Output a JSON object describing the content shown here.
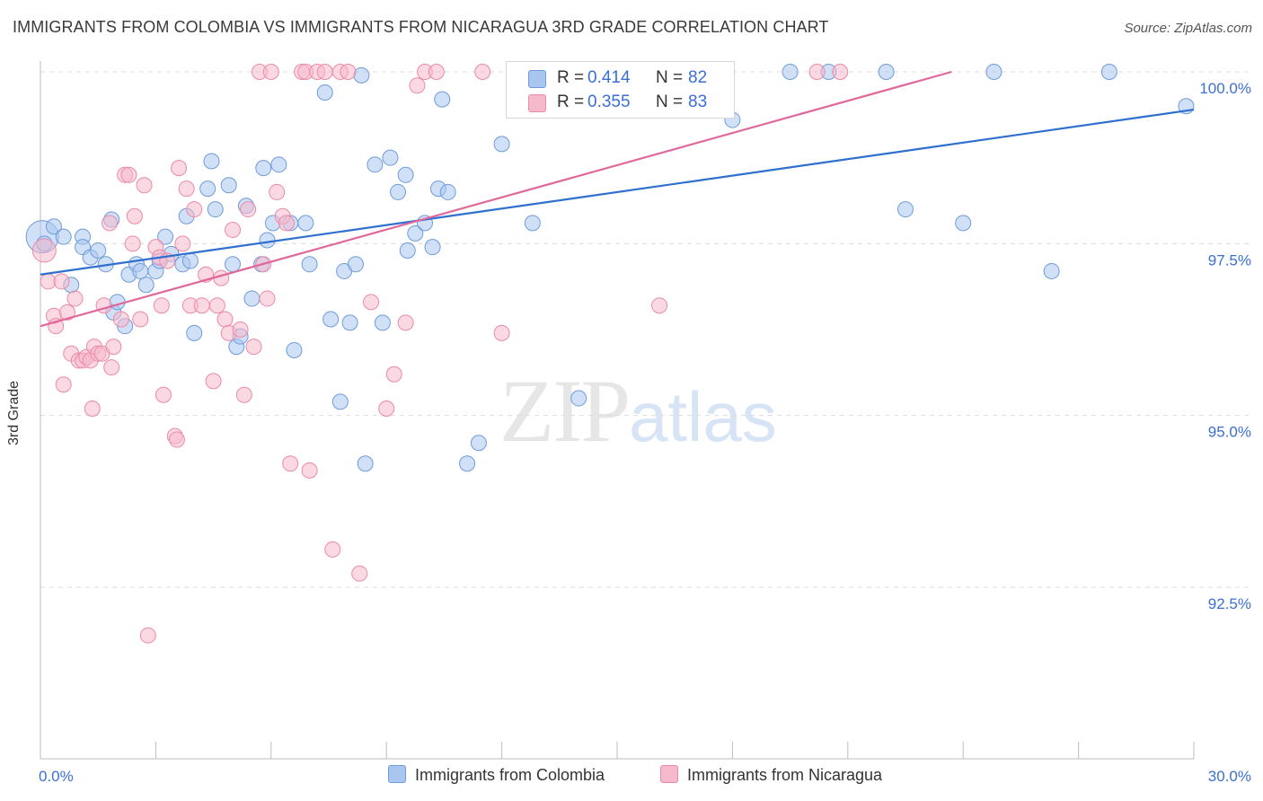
{
  "title": "IMMIGRANTS FROM COLOMBIA VS IMMIGRANTS FROM NICARAGUA 3RD GRADE CORRELATION CHART",
  "source": "Source: ZipAtlas.com",
  "watermark": {
    "zip": "ZIP",
    "atlas": "atlas"
  },
  "legend_top": {
    "r_label": "R =",
    "n_label": "N =",
    "rows": [
      {
        "r": "0.414",
        "n": "82"
      },
      {
        "r": "0.355",
        "n": "83"
      }
    ]
  },
  "colors": {
    "colombia_fill": "#a9c6ee",
    "colombia_stroke": "#6f9bdc",
    "colombia_line": "#2e6fd0",
    "nicaragua_fill": "#f6b9cc",
    "nicaragua_stroke": "#eb8aa8",
    "nicaragua_line": "#e0689a",
    "axis_text": "#3b6fd4",
    "grid": "#dcdcdc"
  },
  "chart_data": {
    "type": "scatter",
    "title": "IMMIGRANTS FROM COLOMBIA VS IMMIGRANTS FROM NICARAGUA 3RD GRADE CORRELATION CHART",
    "xlabel": "",
    "ylabel": "3rd Grade",
    "xlim": [
      0,
      30
    ],
    "ylim": [
      90.2,
      100.5
    ],
    "x_tick_labels": [
      "0.0%",
      "30.0%"
    ],
    "y_ticks": [
      92.5,
      95.0,
      97.5,
      100.0
    ],
    "y_tick_labels": [
      "92.5%",
      "95.0%",
      "97.5%",
      "100.0%"
    ],
    "grid": "horizontal dashed",
    "legend_position": "top-center and bottom",
    "series": [
      {
        "name": "Immigrants from Colombia",
        "r": 0.414,
        "n": 82,
        "trend": {
          "x": [
            0,
            30
          ],
          "y": [
            97.05,
            99.45
          ]
        },
        "points": [
          [
            0.05,
            97.6
          ],
          [
            0.1,
            97.5
          ],
          [
            0.35,
            97.75
          ],
          [
            0.6,
            97.6
          ],
          [
            0.8,
            96.9
          ],
          [
            1.1,
            97.6
          ],
          [
            1.1,
            97.45
          ],
          [
            1.3,
            97.3
          ],
          [
            1.5,
            97.4
          ],
          [
            1.7,
            97.2
          ],
          [
            1.9,
            96.5
          ],
          [
            2.0,
            96.65
          ],
          [
            1.85,
            97.85
          ],
          [
            2.2,
            96.3
          ],
          [
            2.3,
            97.05
          ],
          [
            2.5,
            97.2
          ],
          [
            2.6,
            97.1
          ],
          [
            2.75,
            96.9
          ],
          [
            3.0,
            97.1
          ],
          [
            3.1,
            97.25
          ],
          [
            3.25,
            97.6
          ],
          [
            3.4,
            97.35
          ],
          [
            3.7,
            97.2
          ],
          [
            3.8,
            97.9
          ],
          [
            3.9,
            97.25
          ],
          [
            4.0,
            96.2
          ],
          [
            4.35,
            98.3
          ],
          [
            4.45,
            98.7
          ],
          [
            4.55,
            98.0
          ],
          [
            4.9,
            98.35
          ],
          [
            5.0,
            97.2
          ],
          [
            5.1,
            96.0
          ],
          [
            5.2,
            96.15
          ],
          [
            5.35,
            98.05
          ],
          [
            5.5,
            96.7
          ],
          [
            5.75,
            97.2
          ],
          [
            5.8,
            98.6
          ],
          [
            5.9,
            97.55
          ],
          [
            6.05,
            97.8
          ],
          [
            6.2,
            98.65
          ],
          [
            6.5,
            97.8
          ],
          [
            6.6,
            95.95
          ],
          [
            6.9,
            97.8
          ],
          [
            7.0,
            97.2
          ],
          [
            7.4,
            99.7
          ],
          [
            7.55,
            96.4
          ],
          [
            7.8,
            95.2
          ],
          [
            7.9,
            97.1
          ],
          [
            8.05,
            96.35
          ],
          [
            8.2,
            97.2
          ],
          [
            8.35,
            99.95
          ],
          [
            8.45,
            94.3
          ],
          [
            8.7,
            98.65
          ],
          [
            8.9,
            96.35
          ],
          [
            9.1,
            98.75
          ],
          [
            9.3,
            98.25
          ],
          [
            9.5,
            98.5
          ],
          [
            9.55,
            97.4
          ],
          [
            9.75,
            97.65
          ],
          [
            10.0,
            97.8
          ],
          [
            10.2,
            97.45
          ],
          [
            10.35,
            98.3
          ],
          [
            10.45,
            99.6
          ],
          [
            10.6,
            98.25
          ],
          [
            11.1,
            94.3
          ],
          [
            11.4,
            94.6
          ],
          [
            12.0,
            98.95
          ],
          [
            12.8,
            97.8
          ],
          [
            14.0,
            95.25
          ],
          [
            14.5,
            100.0
          ],
          [
            14.7,
            100.0
          ],
          [
            16.3,
            100.0
          ],
          [
            18.0,
            99.3
          ],
          [
            19.5,
            100.0
          ],
          [
            20.5,
            100.0
          ],
          [
            22.0,
            100.0
          ],
          [
            22.5,
            98.0
          ],
          [
            24.0,
            97.8
          ],
          [
            24.8,
            100.0
          ],
          [
            26.3,
            97.1
          ],
          [
            27.8,
            100.0
          ],
          [
            29.8,
            99.5
          ]
        ]
      },
      {
        "name": "Immigrants from Nicaragua",
        "r": 0.355,
        "n": 83,
        "trend": {
          "x": [
            0,
            23.7
          ],
          "y": [
            96.3,
            100.0
          ]
        },
        "points": [
          [
            0.1,
            97.4
          ],
          [
            0.2,
            96.95
          ],
          [
            0.35,
            96.45
          ],
          [
            0.4,
            96.3
          ],
          [
            0.55,
            96.95
          ],
          [
            0.6,
            95.45
          ],
          [
            0.7,
            96.5
          ],
          [
            0.8,
            95.9
          ],
          [
            0.9,
            96.7
          ],
          [
            1.0,
            95.8
          ],
          [
            1.1,
            95.8
          ],
          [
            1.2,
            95.85
          ],
          [
            1.3,
            95.8
          ],
          [
            1.35,
            95.1
          ],
          [
            1.4,
            96.0
          ],
          [
            1.5,
            95.9
          ],
          [
            1.6,
            95.9
          ],
          [
            1.65,
            96.6
          ],
          [
            1.8,
            97.8
          ],
          [
            1.85,
            95.7
          ],
          [
            1.9,
            96.0
          ],
          [
            2.1,
            96.4
          ],
          [
            2.2,
            98.5
          ],
          [
            2.3,
            98.5
          ],
          [
            2.4,
            97.5
          ],
          [
            2.45,
            97.9
          ],
          [
            2.6,
            96.4
          ],
          [
            2.7,
            98.35
          ],
          [
            2.8,
            91.8
          ],
          [
            3.0,
            97.45
          ],
          [
            3.1,
            97.3
          ],
          [
            3.15,
            96.6
          ],
          [
            3.2,
            95.3
          ],
          [
            3.3,
            97.25
          ],
          [
            3.5,
            94.7
          ],
          [
            3.55,
            94.65
          ],
          [
            3.6,
            98.6
          ],
          [
            3.7,
            97.5
          ],
          [
            3.8,
            98.3
          ],
          [
            3.9,
            96.6
          ],
          [
            4.0,
            98.0
          ],
          [
            4.2,
            96.6
          ],
          [
            4.3,
            97.05
          ],
          [
            4.5,
            95.5
          ],
          [
            4.6,
            96.6
          ],
          [
            4.7,
            97.0
          ],
          [
            4.8,
            96.4
          ],
          [
            4.9,
            96.2
          ],
          [
            5.0,
            97.7
          ],
          [
            5.2,
            96.25
          ],
          [
            5.3,
            95.3
          ],
          [
            5.4,
            98.0
          ],
          [
            5.55,
            96.0
          ],
          [
            5.7,
            100.0
          ],
          [
            5.8,
            97.2
          ],
          [
            5.9,
            96.7
          ],
          [
            6.0,
            100.0
          ],
          [
            6.15,
            98.25
          ],
          [
            6.3,
            97.9
          ],
          [
            6.4,
            97.8
          ],
          [
            6.5,
            94.3
          ],
          [
            6.8,
            100.0
          ],
          [
            6.9,
            100.0
          ],
          [
            7.0,
            94.2
          ],
          [
            7.2,
            100.0
          ],
          [
            7.4,
            100.0
          ],
          [
            7.6,
            93.05
          ],
          [
            7.8,
            100.0
          ],
          [
            8.0,
            100.0
          ],
          [
            8.3,
            92.7
          ],
          [
            8.6,
            96.65
          ],
          [
            9.0,
            95.1
          ],
          [
            9.2,
            95.6
          ],
          [
            9.5,
            96.35
          ],
          [
            9.8,
            99.8
          ],
          [
            10.0,
            100.0
          ],
          [
            10.3,
            100.0
          ],
          [
            11.5,
            100.0
          ],
          [
            12.0,
            96.2
          ],
          [
            14.7,
            100.0
          ],
          [
            16.1,
            96.6
          ],
          [
            20.2,
            100.0
          ],
          [
            20.8,
            100.0
          ]
        ]
      }
    ]
  },
  "bottom_legend": {
    "colombia": "Immigrants from Colombia",
    "nicaragua": "Immigrants from Nicaragua"
  }
}
